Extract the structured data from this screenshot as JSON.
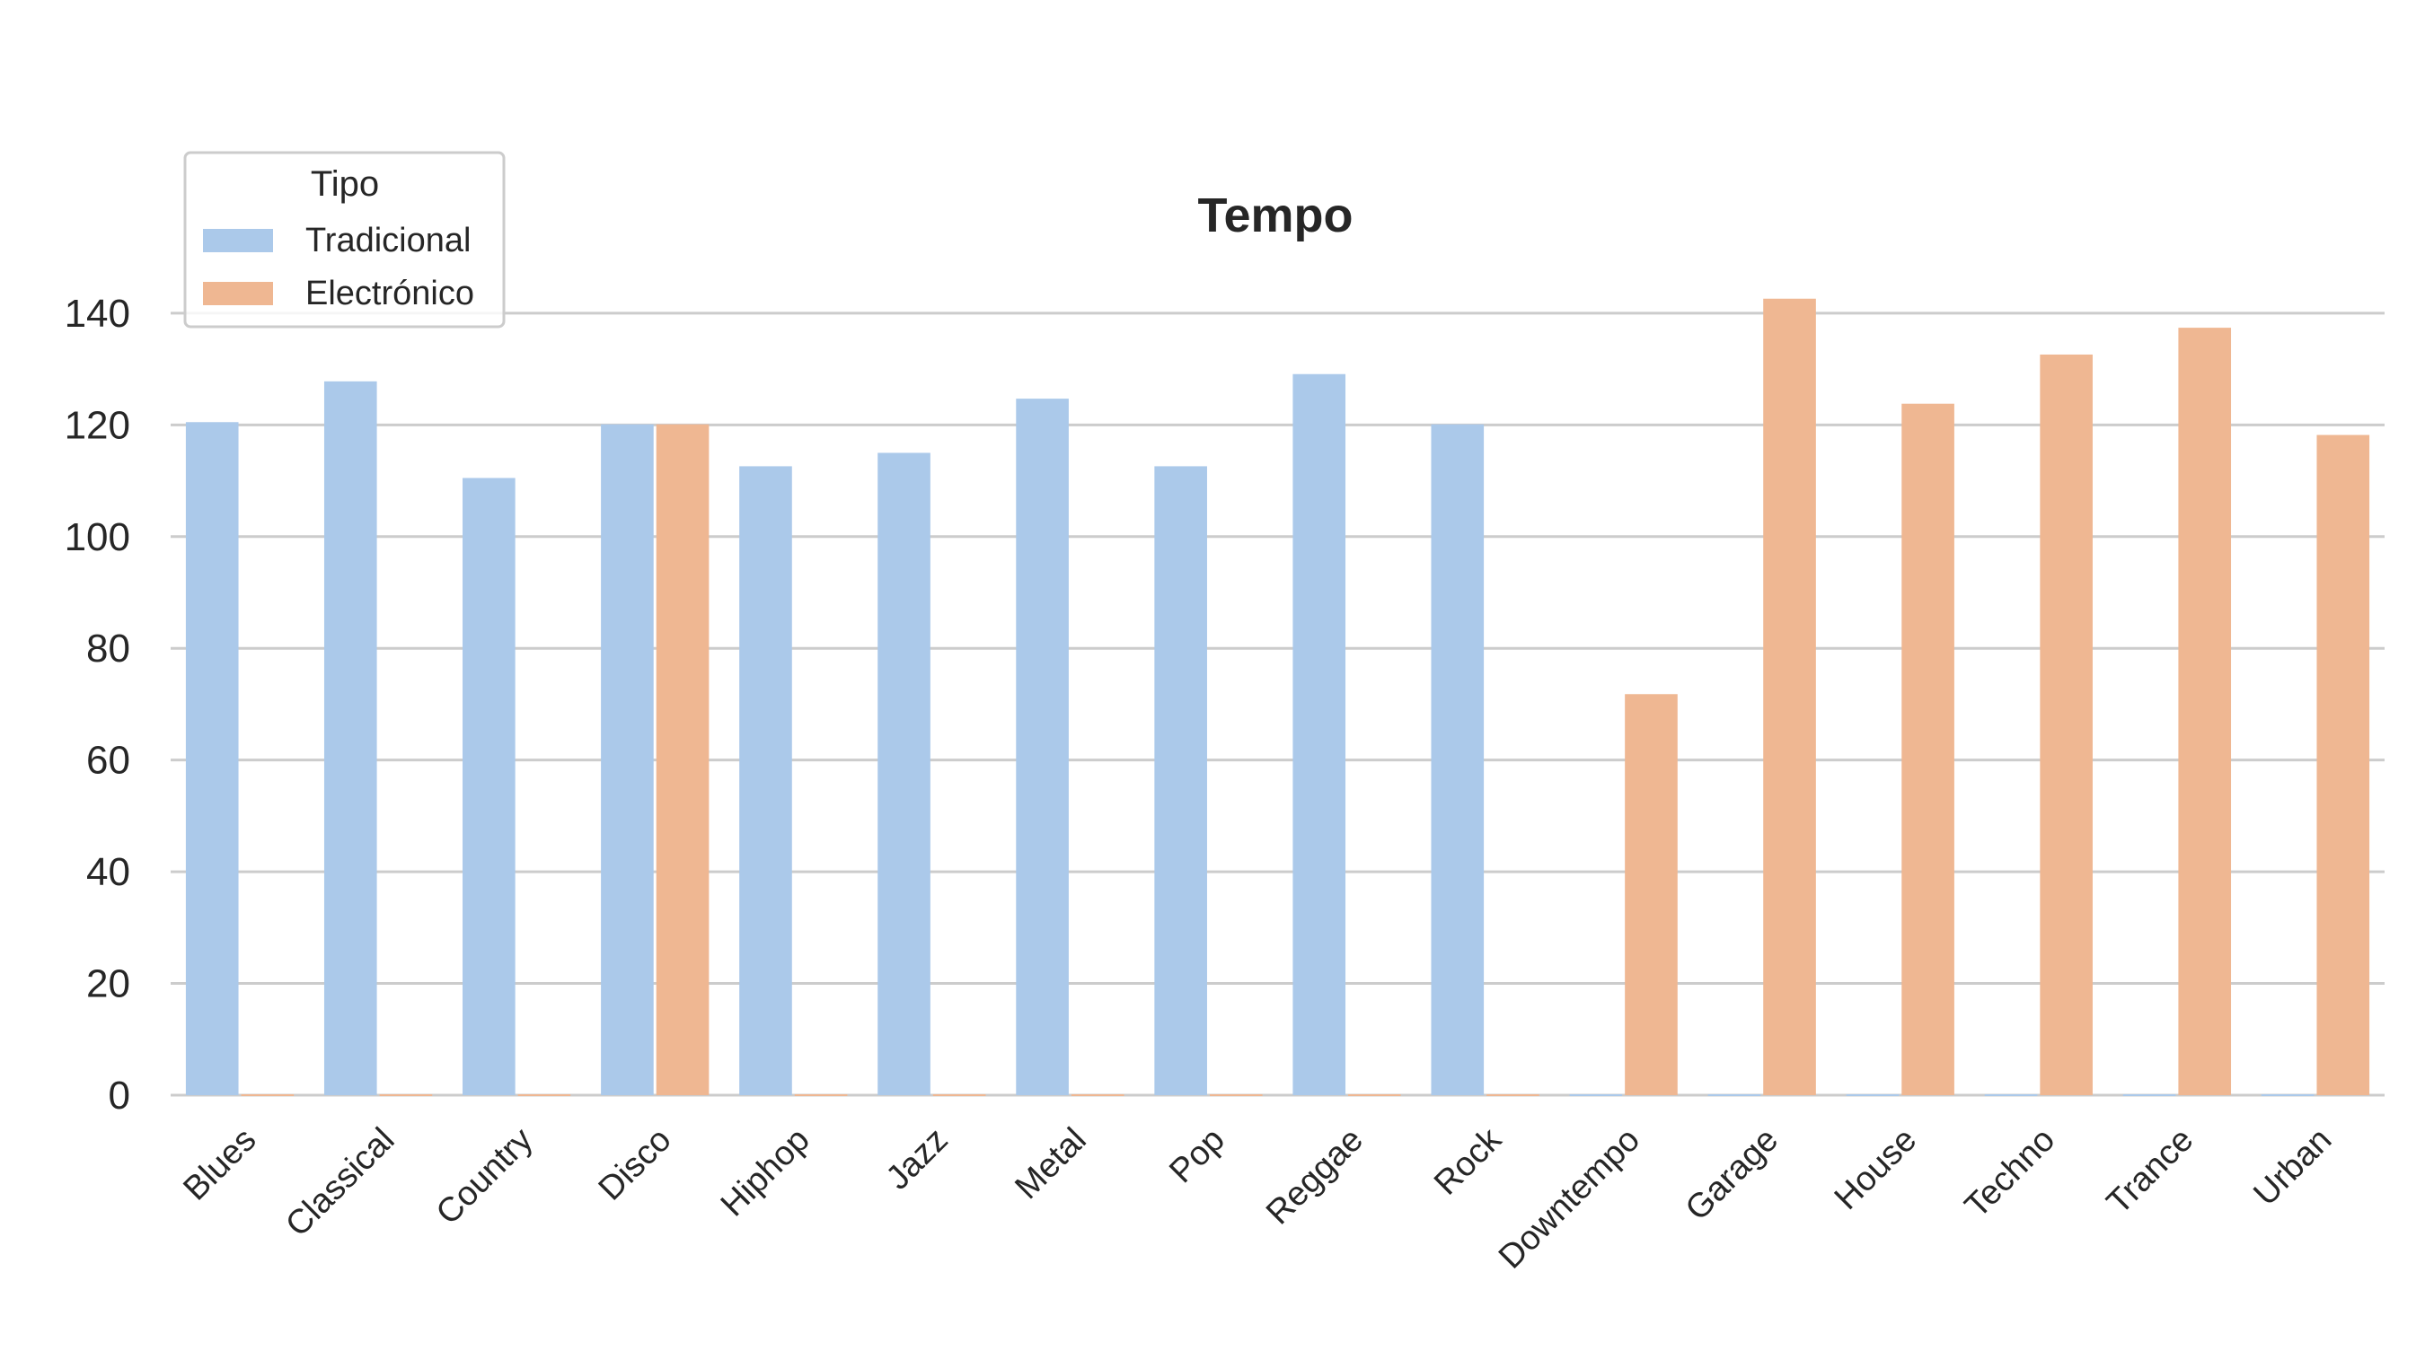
{
  "chart_data": {
    "type": "bar",
    "title": "Tempo",
    "xlabel": "",
    "ylabel": "",
    "ylim": [
      0,
      150
    ],
    "yticks": [
      0,
      20,
      40,
      60,
      80,
      100,
      120,
      140
    ],
    "grid": "horizontal",
    "categories": [
      "Blues",
      "Classical",
      "Country",
      "Disco",
      "Hiphop",
      "Jazz",
      "Metal",
      "Pop",
      "Reggae",
      "Rock",
      "Downtempo",
      "Garage",
      "House",
      "Techno",
      "Trance",
      "Urban"
    ],
    "series": [
      {
        "name": "Tradicional",
        "color": "#abc9ea",
        "values": [
          120.5,
          127.8,
          110.5,
          120.1,
          112.6,
          115.0,
          124.7,
          112.6,
          129.1,
          120.1,
          null,
          null,
          null,
          null,
          null,
          null
        ]
      },
      {
        "name": "Electrónico",
        "color": "#efb792",
        "values": [
          null,
          null,
          null,
          120.1,
          null,
          null,
          null,
          null,
          null,
          null,
          71.8,
          142.6,
          123.8,
          132.6,
          137.4,
          118.2
        ]
      }
    ],
    "legend": {
      "title": "Tipo",
      "placement": "top-left"
    }
  }
}
